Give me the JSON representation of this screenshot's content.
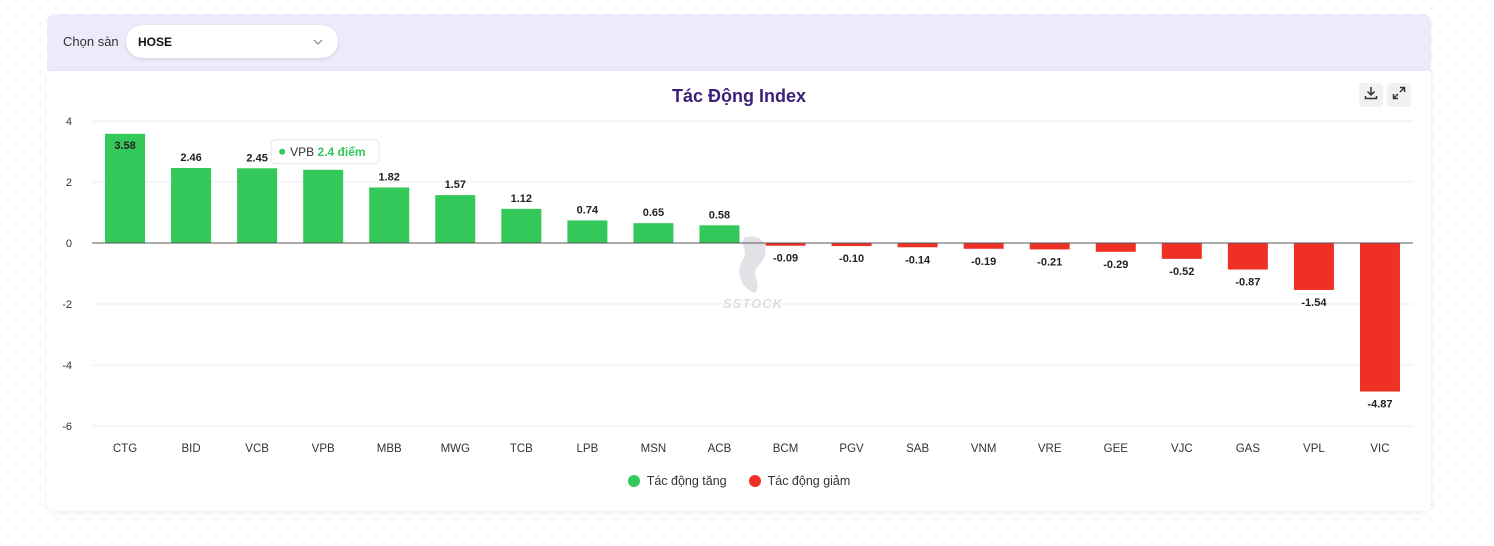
{
  "filter": {
    "label": "Chọn sàn",
    "selected": "HOSE"
  },
  "colors": {
    "positive": "#34c759",
    "negative": "#ef3125",
    "title": "#3c1f7a"
  },
  "tooltip": {
    "name": "VPB",
    "value_text": "2.4 điểm"
  },
  "watermark": "SSTOCK",
  "chart_data": {
    "type": "bar",
    "title": "Tác Động Index",
    "xlabel": "",
    "ylabel": "",
    "ylim": [
      -6,
      4
    ],
    "yticks": [
      4,
      2,
      0,
      -2,
      -4,
      -6
    ],
    "grid": true,
    "legend_position": "bottom-center",
    "categories": [
      "CTG",
      "BID",
      "VCB",
      "VPB",
      "MBB",
      "MWG",
      "TCB",
      "LPB",
      "MSN",
      "ACB",
      "BCM",
      "PGV",
      "SAB",
      "VNM",
      "VRE",
      "GEE",
      "VJC",
      "GAS",
      "VPL",
      "VIC"
    ],
    "values": [
      3.58,
      2.46,
      2.45,
      2.4,
      1.82,
      1.57,
      1.12,
      0.74,
      0.65,
      0.58,
      -0.09,
      -0.1,
      -0.14,
      -0.19,
      -0.21,
      -0.29,
      -0.52,
      -0.87,
      -1.54,
      -4.87
    ],
    "data_labels": [
      "3.58",
      "2.46",
      "2.45",
      "",
      "1.82",
      "1.57",
      "1.12",
      "0.74",
      "0.65",
      "0.58",
      "-0.09",
      "-0.10",
      "-0.14",
      "-0.19",
      "-0.21",
      "-0.29",
      "-0.52",
      "-0.87",
      "-1.54",
      "-4.87"
    ],
    "series": [
      {
        "name": "Tác động tăng"
      },
      {
        "name": "Tác động giảm"
      }
    ]
  }
}
